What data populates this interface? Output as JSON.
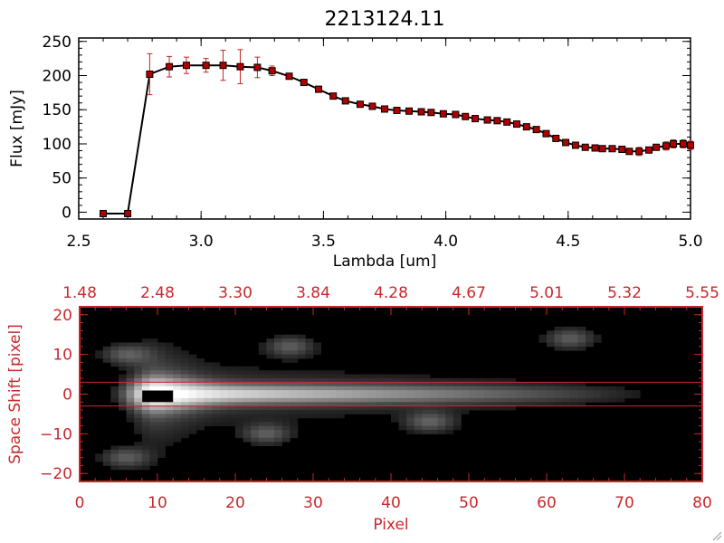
{
  "chart_data": [
    {
      "type": "line",
      "title": "2213124.11",
      "xlabel": "Lambda [um]",
      "ylabel": "Flux [mJy]",
      "xlim": [
        2.5,
        5.0
      ],
      "ylim": [
        -10,
        255
      ],
      "xticks": [
        2.5,
        3.0,
        3.5,
        4.0,
        4.5,
        5.0
      ],
      "xtick_labels": [
        "2.5",
        "3.0",
        "3.5",
        "4.0",
        "4.5",
        "5.0"
      ],
      "yticks": [
        0,
        50,
        100,
        150,
        200,
        250
      ],
      "ytick_labels": [
        "0",
        "50",
        "100",
        "150",
        "200",
        "250"
      ],
      "line_color": "#000000",
      "marker_color": "#b00000",
      "errorbar_color": "#cc2222",
      "series": [
        {
          "x": [
            2.6,
            2.7,
            2.79,
            2.87,
            2.94,
            3.02,
            3.09,
            3.16,
            3.23,
            3.29,
            3.36,
            3.42,
            3.48,
            3.54,
            3.59,
            3.65,
            3.7,
            3.75,
            3.8,
            3.85,
            3.9,
            3.94,
            3.99,
            4.04,
            4.08,
            4.12,
            4.17,
            4.21,
            4.25,
            4.29,
            4.33,
            4.37,
            4.41,
            4.45,
            4.49,
            4.53,
            4.57,
            4.61,
            4.64,
            4.68,
            4.72,
            4.75,
            4.79,
            4.83,
            4.86,
            4.9,
            4.93,
            4.97,
            5.0
          ],
          "y": [
            -2,
            -2,
            202,
            213,
            215,
            215,
            215,
            213,
            212,
            207,
            199,
            190,
            180,
            170,
            163,
            158,
            155,
            151,
            149,
            148,
            147,
            146,
            144,
            143,
            140,
            137,
            135,
            134,
            132,
            129,
            125,
            121,
            115,
            108,
            102,
            98,
            95,
            94,
            93,
            93,
            92,
            89,
            89,
            91,
            95,
            97,
            100,
            100,
            98
          ],
          "err": [
            0,
            0,
            30,
            15,
            12,
            10,
            22,
            25,
            15,
            7,
            4,
            3,
            3,
            2,
            2,
            2,
            2,
            2,
            2,
            2,
            2,
            2,
            2,
            2,
            2,
            2,
            2,
            2,
            2,
            2,
            2,
            2,
            2,
            2,
            2,
            2,
            2,
            2,
            2,
            2,
            2,
            4,
            6,
            4,
            4,
            6,
            6,
            6,
            6
          ]
        }
      ]
    },
    {
      "type": "heatmap",
      "xlabel": "Pixel",
      "ylabel": "Space Shift [pixel]",
      "xlim": [
        0,
        80
      ],
      "ylim": [
        -22,
        22
      ],
      "xticks": [
        0,
        10,
        20,
        30,
        40,
        50,
        60,
        70,
        80
      ],
      "xtick_labels": [
        "0",
        "10",
        "20",
        "30",
        "40",
        "50",
        "60",
        "70",
        "80"
      ],
      "yticks": [
        -20,
        -10,
        0,
        10,
        20
      ],
      "ytick_labels": [
        "−20",
        "−10",
        "0",
        "10",
        "20"
      ],
      "top_axis_ticks": [
        0,
        10,
        20,
        30,
        40,
        50,
        60,
        70,
        80
      ],
      "top_axis_labels": [
        "1.48",
        "2.48",
        "3.30",
        "3.84",
        "4.28",
        "4.67",
        "5.01",
        "5.32",
        "5.55"
      ],
      "aperture_lines_y": [
        3,
        -3
      ],
      "axis_color": "#c8282d",
      "colormap": "grayscale",
      "trace": {
        "peak_x": 10,
        "peak_y": 0,
        "end_x": 76
      },
      "blobs": [
        {
          "x": 27,
          "y": 12
        },
        {
          "x": 63,
          "y": 14
        },
        {
          "x": 45,
          "y": -7
        },
        {
          "x": 24,
          "y": -10
        },
        {
          "x": 6,
          "y": 10
        },
        {
          "x": 6,
          "y": -16
        }
      ]
    }
  ]
}
